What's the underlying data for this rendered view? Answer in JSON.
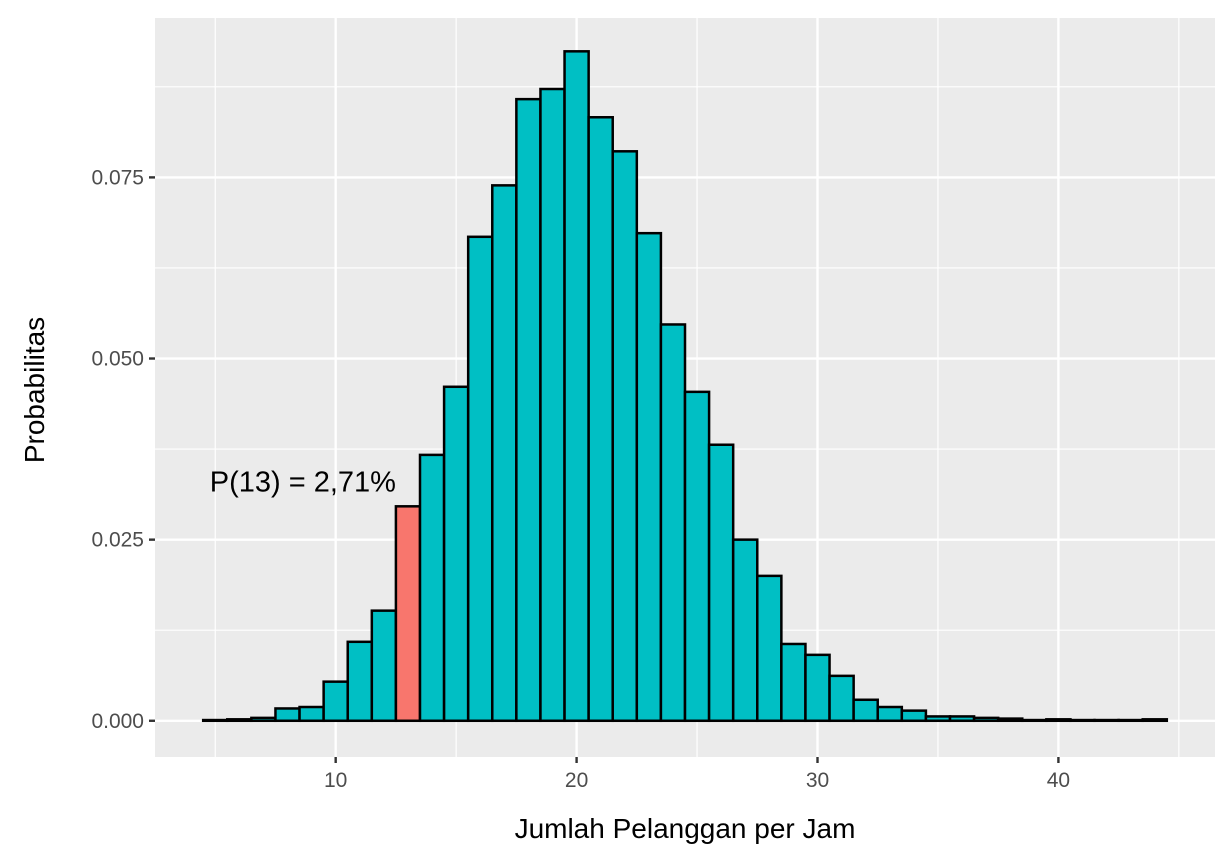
{
  "chart_data": {
    "type": "bar",
    "title": "",
    "xlabel": "Jumlah Pelanggan per Jam",
    "ylabel": "Probabilitas",
    "x": [
      5,
      6,
      7,
      8,
      9,
      10,
      11,
      12,
      13,
      14,
      15,
      16,
      17,
      18,
      19,
      20,
      21,
      22,
      23,
      24,
      25,
      26,
      27,
      28,
      29,
      30,
      31,
      32,
      33,
      34,
      35,
      36,
      37,
      38,
      39,
      40,
      41,
      42,
      43,
      44
    ],
    "values": [
      0.0001,
      0.0002,
      0.0004,
      0.0017,
      0.0019,
      0.0054,
      0.0109,
      0.0152,
      0.0296,
      0.0367,
      0.0461,
      0.0668,
      0.0739,
      0.0858,
      0.0872,
      0.0924,
      0.0833,
      0.0786,
      0.0673,
      0.0547,
      0.0454,
      0.0381,
      0.025,
      0.02,
      0.0106,
      0.0091,
      0.0062,
      0.0029,
      0.0019,
      0.0014,
      0.0006,
      0.0006,
      0.0004,
      0.0003,
      0.0001,
      0.0002,
      0.0001,
      0.0001,
      0.0001,
      0.0002
    ],
    "highlight_x": 13,
    "highlight_label": "P(13) = 2,71%",
    "xticks": [
      10,
      20,
      30,
      40
    ],
    "xtick_labels": [
      "10",
      "20",
      "30",
      "40"
    ],
    "yticks": [
      0,
      0.025,
      0.05,
      0.075
    ],
    "ytick_labels": [
      "0.000",
      "0.025",
      "0.050",
      "0.075"
    ],
    "xlim": [
      2.5,
      46.5
    ],
    "ylim": [
      -0.005,
      0.097
    ],
    "grid": true,
    "colors": {
      "bar": "#00BFC4",
      "highlight": "#F8766D",
      "outline": "#000000",
      "panel": "#EBEBEB",
      "grid": "#FFFFFF"
    }
  }
}
